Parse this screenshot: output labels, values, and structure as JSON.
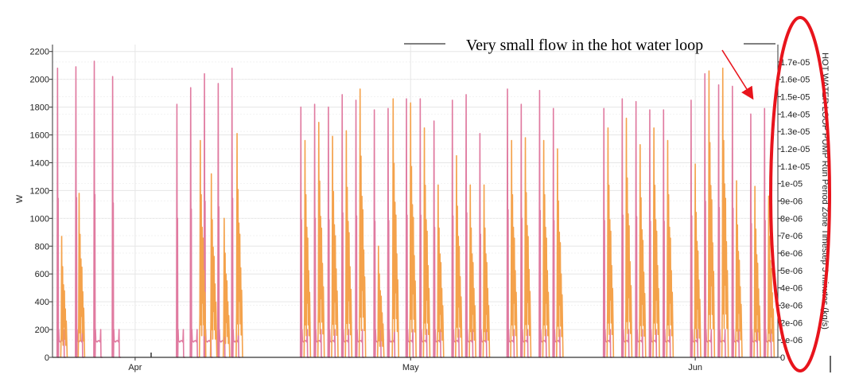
{
  "chart_data": {
    "type": "line",
    "title": "",
    "left_axis": {
      "label": "W",
      "ylim": [
        0,
        2250
      ],
      "ticks": [
        0,
        200,
        400,
        600,
        800,
        1000,
        1200,
        1400,
        1600,
        1800,
        2000,
        2200
      ]
    },
    "right_axis": {
      "label": "HOT WATER LOOP PUMP Run Period Zone Timestep 5 minutes (kg/s)",
      "ylim": [
        0,
        1.8e-05
      ],
      "ticks": [
        "0",
        "1e-06",
        "2e-06",
        "3e-06",
        "4e-06",
        "5e-06",
        "6e-06",
        "7e-06",
        "8e-06",
        "9e-06",
        "1e-05",
        "1.1e-05",
        "1.2e-05",
        "1.3e-05",
        "1.4e-05",
        "1.5e-05",
        "1.6e-05",
        "1.7e-05"
      ]
    },
    "x_axis": {
      "ticks": [
        {
          "label": "Apr",
          "day": 9
        },
        {
          "label": "May",
          "day": 39
        },
        {
          "label": "Jun",
          "day": 70
        }
      ],
      "xlim": [
        0,
        79
      ]
    },
    "grid": true,
    "colors": {
      "pink": "#e07aa0",
      "orange": "#f4a24b",
      "annotation": "#e8141c"
    },
    "series": [
      {
        "axis": "right",
        "color": "#e07aa0",
        "days": [
          {
            "day": 0.5,
            "peak": 2080
          },
          {
            "day": 2.5,
            "peak": 2090
          },
          {
            "day": 4.5,
            "peak": 2130
          },
          {
            "day": 6.5,
            "peak": 2020
          },
          {
            "day": 13.5,
            "peak": 1820
          },
          {
            "day": 15.0,
            "peak": 1940
          },
          {
            "day": 16.5,
            "peak": 2040
          },
          {
            "day": 18.0,
            "peak": 1970
          },
          {
            "day": 19.5,
            "peak": 2080
          },
          {
            "day": 27.0,
            "peak": 1800
          },
          {
            "day": 28.5,
            "peak": 1820
          },
          {
            "day": 30.0,
            "peak": 1800
          },
          {
            "day": 31.5,
            "peak": 1890
          },
          {
            "day": 33.0,
            "peak": 1850
          },
          {
            "day": 35.0,
            "peak": 1780
          },
          {
            "day": 36.5,
            "peak": 1790
          },
          {
            "day": 38.5,
            "peak": 1860
          },
          {
            "day": 40.0,
            "peak": 1860
          },
          {
            "day": 41.5,
            "peak": 1700
          },
          {
            "day": 43.5,
            "peak": 1850
          },
          {
            "day": 45.0,
            "peak": 1890
          },
          {
            "day": 46.5,
            "peak": 1610
          },
          {
            "day": 49.5,
            "peak": 1930
          },
          {
            "day": 51.0,
            "peak": 1820
          },
          {
            "day": 53.0,
            "peak": 1920
          },
          {
            "day": 54.5,
            "peak": 1790
          },
          {
            "day": 60.0,
            "peak": 1790
          },
          {
            "day": 62.0,
            "peak": 1860
          },
          {
            "day": 63.5,
            "peak": 1840
          },
          {
            "day": 65.0,
            "peak": 1780
          },
          {
            "day": 66.5,
            "peak": 1780
          },
          {
            "day": 69.5,
            "peak": 1850
          },
          {
            "day": 71.0,
            "peak": 2040
          },
          {
            "day": 72.5,
            "peak": 1960
          },
          {
            "day": 74.0,
            "peak": 1950
          },
          {
            "day": 76.0,
            "peak": 1750
          },
          {
            "day": 77.5,
            "peak": 1790
          }
        ]
      },
      {
        "axis": "left",
        "color": "#f4a24b",
        "days": [
          {
            "day": 0.9,
            "peak": 870
          },
          {
            "day": 2.8,
            "peak": 1180
          },
          {
            "day": 16.0,
            "peak": 1560
          },
          {
            "day": 17.2,
            "peak": 1320
          },
          {
            "day": 18.6,
            "peak": 1000
          },
          {
            "day": 20.0,
            "peak": 1610
          },
          {
            "day": 27.4,
            "peak": 1560
          },
          {
            "day": 28.9,
            "peak": 1690
          },
          {
            "day": 30.4,
            "peak": 1590
          },
          {
            "day": 31.9,
            "peak": 1630
          },
          {
            "day": 33.4,
            "peak": 1930
          },
          {
            "day": 35.4,
            "peak": 800
          },
          {
            "day": 37.0,
            "peak": 1860
          },
          {
            "day": 38.9,
            "peak": 1830
          },
          {
            "day": 40.4,
            "peak": 1650
          },
          {
            "day": 41.9,
            "peak": 1240
          },
          {
            "day": 43.9,
            "peak": 1450
          },
          {
            "day": 45.4,
            "peak": 1240
          },
          {
            "day": 46.9,
            "peak": 1240
          },
          {
            "day": 49.9,
            "peak": 1560
          },
          {
            "day": 51.4,
            "peak": 1580
          },
          {
            "day": 53.4,
            "peak": 1560
          },
          {
            "day": 54.9,
            "peak": 1500
          },
          {
            "day": 60.4,
            "peak": 1650
          },
          {
            "day": 62.4,
            "peak": 1720
          },
          {
            "day": 63.9,
            "peak": 1530
          },
          {
            "day": 65.4,
            "peak": 1650
          },
          {
            "day": 66.9,
            "peak": 1560
          },
          {
            "day": 69.9,
            "peak": 1390
          },
          {
            "day": 71.4,
            "peak": 2060
          },
          {
            "day": 72.9,
            "peak": 2080
          },
          {
            "day": 74.4,
            "peak": 1270
          },
          {
            "day": 76.4,
            "peak": 1230
          },
          {
            "day": 77.9,
            "peak": 1160
          }
        ]
      }
    ],
    "annotation": {
      "text": "Very small flow in the hot water loop"
    }
  }
}
